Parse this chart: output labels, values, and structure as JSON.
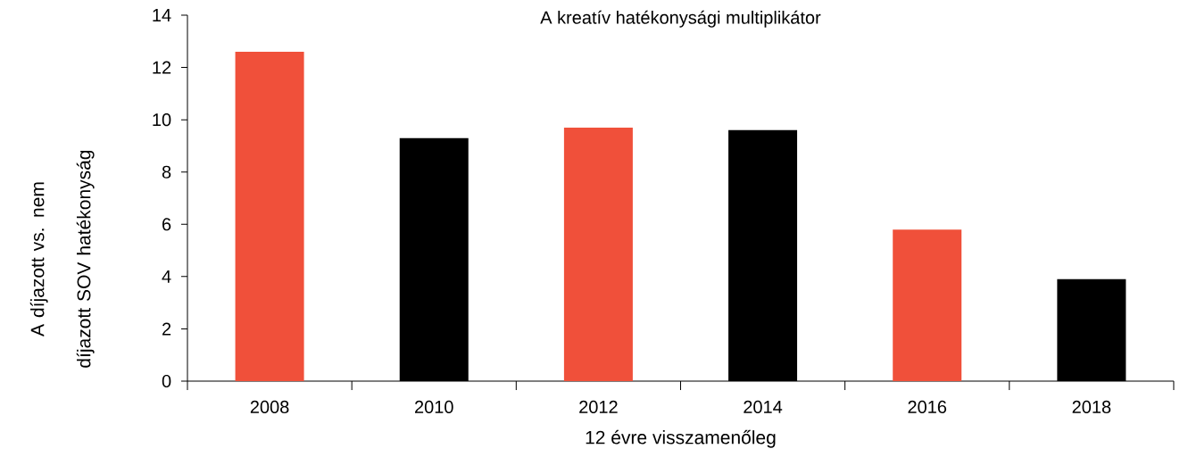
{
  "chart_data": {
    "type": "bar",
    "title": "A kreatív hatékonysági multiplikátor",
    "xlabel": "12 évre visszamenőleg",
    "ylabel": "A díjazott vs. nem díjazott SOV hatékonyság",
    "categories": [
      "2008",
      "2010",
      "2012",
      "2014",
      "2016",
      "2018"
    ],
    "values": [
      12.6,
      9.3,
      9.7,
      9.6,
      5.8,
      3.9
    ],
    "colors": [
      "#f0503a",
      "#000000",
      "#f0503a",
      "#000000",
      "#f0503a",
      "#000000"
    ],
    "ylim": [
      0,
      14
    ],
    "yticks": [
      0,
      2,
      4,
      6,
      8,
      10,
      12,
      14
    ],
    "grid": false
  }
}
